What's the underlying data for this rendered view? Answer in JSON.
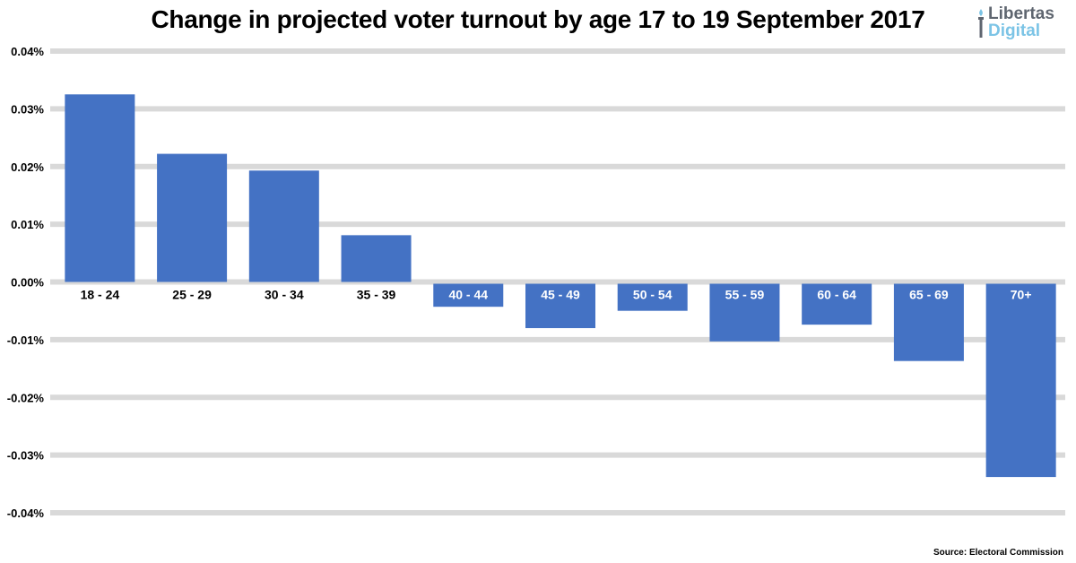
{
  "title": "Change in projected voter turnout by age 17 to 19 September 2017",
  "source": "Source: Electoral Commission",
  "logo": {
    "line1": "Libertas",
    "line2": "Digital"
  },
  "colors": {
    "bar": "#4472c4",
    "grid": "#d9d9d9",
    "brand_dark": "#5f6670",
    "brand_light": "#7cc4e6"
  },
  "chart_data": {
    "type": "bar",
    "title": "Change in projected voter turnout by age 17 to 19 September 2017",
    "xlabel": "",
    "ylabel": "",
    "categories": [
      "18 - 24",
      "25 - 29",
      "30 - 34",
      "35 - 39",
      "40 - 44",
      "45 - 49",
      "50 - 54",
      "55 - 59",
      "60 - 64",
      "65 - 69",
      "70+"
    ],
    "values": [
      0.0325,
      0.0222,
      0.0193,
      0.0081,
      -0.0043,
      -0.008,
      -0.005,
      -0.0103,
      -0.0074,
      -0.0137,
      -0.0338
    ],
    "ylim": [
      -0.04,
      0.04
    ],
    "yticks": [
      0.04,
      0.03,
      0.02,
      0.01,
      0.0,
      -0.01,
      -0.02,
      -0.03,
      -0.04
    ],
    "ytick_labels": [
      "0.04%",
      "0.03%",
      "0.02%",
      "0.01%",
      "0.00%",
      "-0.01%",
      "-0.02%",
      "-0.03%",
      "-0.04%"
    ],
    "grid": true,
    "legend": "none"
  }
}
